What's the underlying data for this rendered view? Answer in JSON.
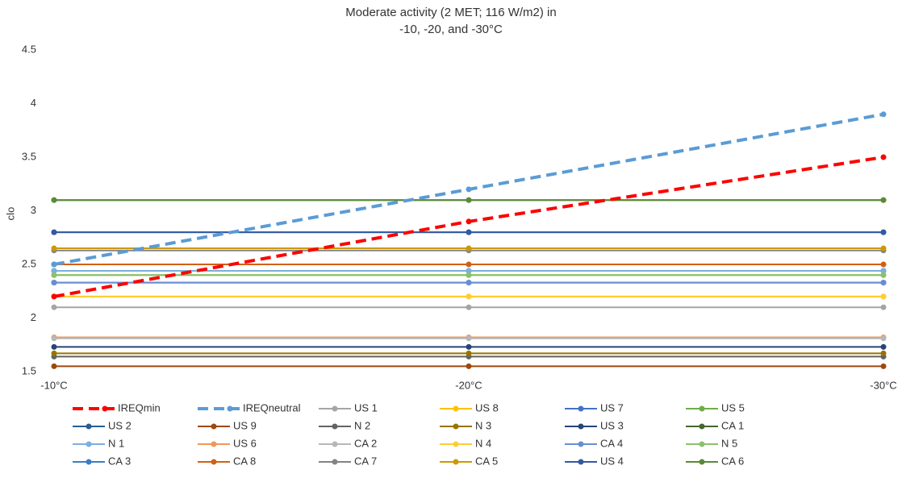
{
  "chart_data": {
    "type": "line",
    "title": [
      "Moderate activity (2 MET; 116 W/m2) in",
      "-10, -20, and -30°C"
    ],
    "y_label": "clo",
    "categories": [
      "-10°C",
      "-20°C",
      "-30°C"
    ],
    "ylim": [
      1.5,
      4.5
    ],
    "yticks": [
      1.5,
      2,
      2.5,
      3,
      3.5,
      4,
      4.5
    ],
    "grid": false,
    "legend": "bottom",
    "series": [
      {
        "name": "IREQmin",
        "color": "#ff0000",
        "dashed": true,
        "values": [
          2.2,
          2.9,
          3.5
        ]
      },
      {
        "name": "IREQneutral",
        "color": "#5b9bd5",
        "dashed": true,
        "values": [
          2.5,
          3.2,
          3.9
        ]
      },
      {
        "name": "US 1",
        "color": "#a5a5a5",
        "values": [
          2.1,
          2.1,
          2.1
        ]
      },
      {
        "name": "US 8",
        "color": "#ffc000",
        "values": [
          2.2,
          2.2,
          2.2
        ]
      },
      {
        "name": "US 7",
        "color": "#4472c4",
        "values": [
          2.33,
          2.33,
          2.33
        ]
      },
      {
        "name": "US 5",
        "color": "#70ad47",
        "values": [
          2.4,
          2.4,
          2.4
        ]
      },
      {
        "name": "US 2",
        "color": "#255e91",
        "values": [
          2.44,
          2.44,
          2.44
        ]
      },
      {
        "name": "US 9",
        "color": "#9e480e",
        "values": [
          1.55,
          1.55,
          1.55
        ]
      },
      {
        "name": "N 2",
        "color": "#636363",
        "values": [
          1.64,
          1.64,
          1.64
        ]
      },
      {
        "name": "N 3",
        "color": "#997300",
        "values": [
          1.67,
          1.67,
          1.67
        ]
      },
      {
        "name": "US 3",
        "color": "#264478",
        "values": [
          1.73,
          1.73,
          1.73
        ]
      },
      {
        "name": "CA 1",
        "color": "#43682b",
        "values": [
          3.1,
          3.1,
          3.1
        ]
      },
      {
        "name": "N 1",
        "color": "#7cafdd",
        "values": [
          2.44,
          2.44,
          2.44
        ]
      },
      {
        "name": "US 6",
        "color": "#f1975a",
        "values": [
          1.82,
          1.82,
          1.82
        ]
      },
      {
        "name": "CA 2",
        "color": "#b7b7b7",
        "values": [
          1.81,
          1.81,
          1.81
        ]
      },
      {
        "name": "N 4",
        "color": "#ffcd33",
        "values": [
          2.2,
          2.2,
          2.2
        ]
      },
      {
        "name": "CA 4",
        "color": "#698ed0",
        "values": [
          2.33,
          2.33,
          2.33
        ]
      },
      {
        "name": "N 5",
        "color": "#8cc168",
        "values": [
          2.4,
          2.4,
          2.4
        ]
      },
      {
        "name": "CA 3",
        "color": "#3c7dc4",
        "values": [
          2.8,
          2.8,
          2.8
        ]
      },
      {
        "name": "CA 8",
        "color": "#d26012",
        "values": [
          2.5,
          2.5,
          2.5
        ]
      },
      {
        "name": "CA 7",
        "color": "#848484",
        "values": [
          2.63,
          2.63,
          2.63
        ]
      },
      {
        "name": "CA 5",
        "color": "#cc9a00",
        "values": [
          2.65,
          2.65,
          2.65
        ]
      },
      {
        "name": "US 4",
        "color": "#335aa1",
        "values": [
          2.8,
          2.8,
          2.8
        ]
      },
      {
        "name": "CA 6",
        "color": "#5a8a39",
        "values": [
          3.1,
          3.1,
          3.1
        ]
      }
    ]
  }
}
